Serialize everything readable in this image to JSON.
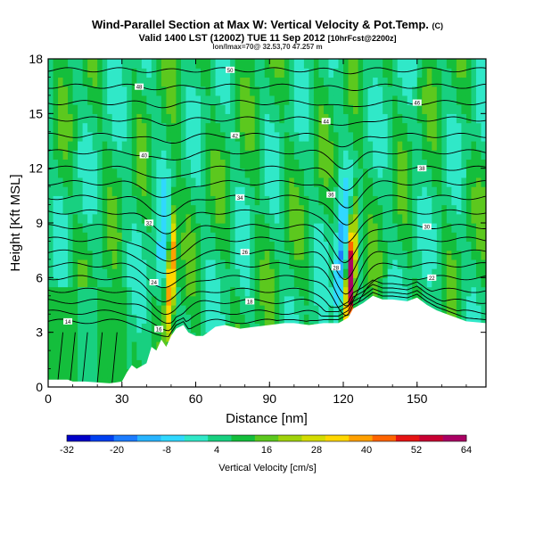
{
  "chart_data": {
    "type": "heatmap",
    "title": "Wind-Parallel Section at Max W: Vertical Velocity & Pot.Temp.",
    "title_suffix": "(C)",
    "subtitle": "Valid 1400 LST (1200Z) TUE 11 Sep 2012",
    "subtitle_suffix": "[10hrFcst@2200z]",
    "subtitle2": "lon/lmax=70@ 32.53,70 47.257 m",
    "xlabel": "Distance [nm]",
    "ylabel": "Height [Kft MSL]",
    "xlim": [
      0,
      178
    ],
    "ylim": [
      0,
      18
    ],
    "xticks": [
      "0",
      "30",
      "60",
      "90",
      "120",
      "150"
    ],
    "yticks": [
      "0",
      "3",
      "6",
      "9",
      "12",
      "15",
      "18"
    ],
    "colorbar": {
      "label": "Vertical Velocity [cm/s]",
      "ticks": [
        "-32",
        "-20",
        "-8",
        "4",
        "16",
        "28",
        "40",
        "52",
        "64"
      ],
      "colors": [
        "#0000c8",
        "#0040f0",
        "#1c7cff",
        "#28b4ff",
        "#30d8ff",
        "#30e8c8",
        "#18d080",
        "#14be3c",
        "#5cc81e",
        "#a0d20a",
        "#d4dc00",
        "#ffd700",
        "#ffa000",
        "#ff6400",
        "#e61414",
        "#c80032",
        "#aa0064"
      ]
    },
    "terrain_kft": [
      [
        0,
        0.4
      ],
      [
        8,
        0.4
      ],
      [
        10,
        0.3
      ],
      [
        15,
        0.3
      ],
      [
        20,
        0.25
      ],
      [
        25,
        0.2
      ],
      [
        30,
        0.3
      ],
      [
        32,
        0.8
      ],
      [
        34,
        1.2
      ],
      [
        36,
        1.0
      ],
      [
        40,
        1.3
      ],
      [
        42,
        2.2
      ],
      [
        44,
        2.0
      ],
      [
        46,
        2.6
      ],
      [
        48,
        2.2
      ],
      [
        50,
        2.8
      ],
      [
        52,
        3.2
      ],
      [
        55,
        3.4
      ],
      [
        57,
        3.0
      ],
      [
        60,
        2.8
      ],
      [
        63,
        2.8
      ],
      [
        65,
        3.0
      ],
      [
        68,
        3.3
      ],
      [
        72,
        3.4
      ],
      [
        78,
        3.2
      ],
      [
        84,
        3.3
      ],
      [
        90,
        3.4
      ],
      [
        96,
        3.5
      ],
      [
        100,
        3.5
      ],
      [
        106,
        3.4
      ],
      [
        112,
        3.5
      ],
      [
        118,
        3.5
      ],
      [
        122,
        3.8
      ],
      [
        124,
        4.3
      ],
      [
        128,
        4.6
      ],
      [
        132,
        5.0
      ],
      [
        136,
        4.8
      ],
      [
        140,
        4.8
      ],
      [
        146,
        4.7
      ],
      [
        150,
        4.9
      ],
      [
        154,
        4.5
      ],
      [
        158,
        4.2
      ],
      [
        162,
        4.0
      ],
      [
        166,
        3.8
      ],
      [
        170,
        3.6
      ],
      [
        178,
        3.5
      ]
    ],
    "isentropes_base_kft": [
      3.6,
      4.1,
      4.7,
      5.3,
      6.0,
      6.7,
      7.4,
      8.1,
      8.8,
      9.6,
      10.4,
      11.2,
      12.0,
      12.9,
      13.8,
      14.7,
      15.6,
      16.5,
      17.4
    ],
    "wave_perturbations": [
      {
        "center_nm": 48,
        "width_nm": 9,
        "amplitude_kft": -1.3,
        "max_velocity_cm_s": 45,
        "min_velocity_cm_s": -14
      },
      {
        "center_nm": 121,
        "width_nm": 7,
        "amplitude_kft": -2.2,
        "max_velocity_cm_s": 64,
        "min_velocity_cm_s": -26
      }
    ],
    "contour_labels": [
      "14",
      "16",
      "18",
      "20",
      "22",
      "24",
      "26",
      "28",
      "30",
      "32",
      "34",
      "36",
      "38",
      "40",
      "42",
      "44",
      "46",
      "48",
      "50",
      "52",
      "54",
      "56",
      "58",
      "60",
      "62",
      "64"
    ],
    "grid": false,
    "legend": "bottom"
  }
}
